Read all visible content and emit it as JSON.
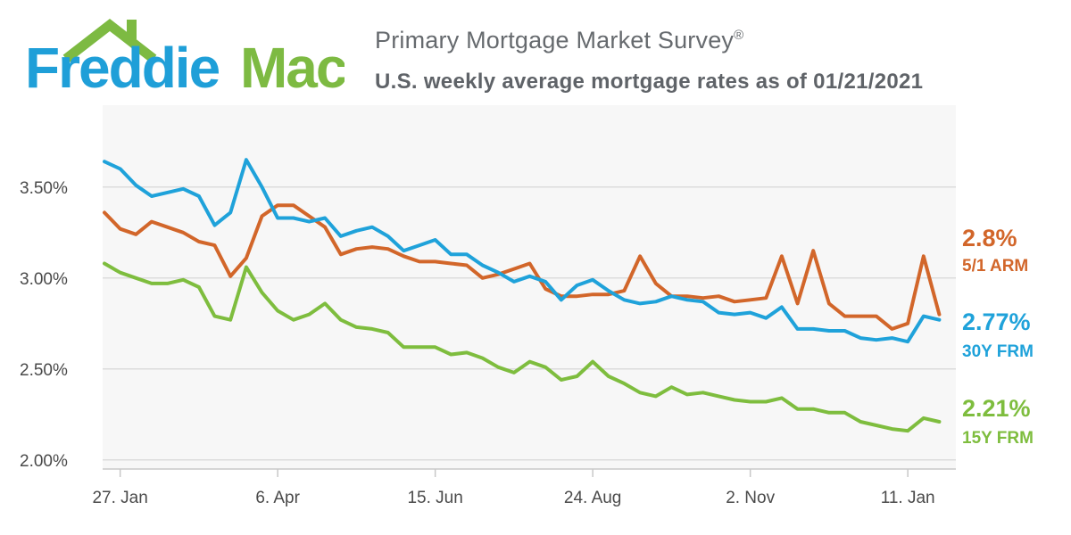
{
  "brand": {
    "name": "Freddie Mac",
    "name_left": "Freddie",
    "name_right": "Mac",
    "blue": "#1f9fd8",
    "green": "#7dba42"
  },
  "header": {
    "title": "Primary Mortgage Market Survey",
    "title_mark": "®",
    "subtitle": "U.S. weekly average mortgage rates as of 01/21/2021"
  },
  "chart_data": {
    "type": "line",
    "title": "Primary Mortgage Market Survey®",
    "subtitle": "U.S. weekly average mortgage rates as of 01/21/2021",
    "xlabel": "",
    "ylabel": "",
    "ylim": [
      1.95,
      3.95
    ],
    "grid": true,
    "y_ticks": [
      {
        "value": 2.0,
        "label": "2.00%"
      },
      {
        "value": 2.5,
        "label": "2.50%"
      },
      {
        "value": 3.0,
        "label": "3.00%"
      },
      {
        "value": 3.5,
        "label": "3.50%"
      }
    ],
    "x_ticks": [
      {
        "index": 1,
        "label": "27. Jan"
      },
      {
        "index": 11,
        "label": "6. Apr"
      },
      {
        "index": 21,
        "label": "15. Jun"
      },
      {
        "index": 31,
        "label": "24. Aug"
      },
      {
        "index": 41,
        "label": "2. Nov"
      },
      {
        "index": 51,
        "label": "11. Jan"
      }
    ],
    "series": [
      {
        "name": "5/1 ARM",
        "end_label": "2.8%",
        "color": "#d2662a",
        "values": [
          3.36,
          3.27,
          3.24,
          3.31,
          3.28,
          3.25,
          3.2,
          3.18,
          3.01,
          3.11,
          3.34,
          3.4,
          3.4,
          3.34,
          3.28,
          3.13,
          3.16,
          3.17,
          3.16,
          3.12,
          3.09,
          3.09,
          3.08,
          3.07,
          3.0,
          3.02,
          3.05,
          3.08,
          2.94,
          2.9,
          2.9,
          2.91,
          2.91,
          2.93,
          3.12,
          2.97,
          2.9,
          2.9,
          2.89,
          2.9,
          2.87,
          2.88,
          2.89,
          3.12,
          2.86,
          3.15,
          2.86,
          2.79,
          2.79,
          2.79,
          2.72,
          2.75,
          3.12,
          2.8
        ]
      },
      {
        "name": "30Y FRM",
        "end_label": "2.77%",
        "color": "#1fa2da",
        "values": [
          3.64,
          3.6,
          3.51,
          3.45,
          3.47,
          3.49,
          3.45,
          3.29,
          3.36,
          3.65,
          3.5,
          3.33,
          3.33,
          3.31,
          3.33,
          3.23,
          3.26,
          3.28,
          3.23,
          3.15,
          3.18,
          3.21,
          3.13,
          3.13,
          3.07,
          3.03,
          2.98,
          3.01,
          2.98,
          2.88,
          2.96,
          2.99,
          2.93,
          2.88,
          2.86,
          2.87,
          2.9,
          2.88,
          2.87,
          2.81,
          2.8,
          2.81,
          2.78,
          2.84,
          2.72,
          2.72,
          2.71,
          2.71,
          2.67,
          2.66,
          2.67,
          2.65,
          2.79,
          2.77
        ]
      },
      {
        "name": "15Y FRM",
        "end_label": "2.21%",
        "color": "#7ebd3e",
        "values": [
          3.08,
          3.03,
          3.0,
          2.97,
          2.97,
          2.99,
          2.95,
          2.79,
          2.77,
          3.06,
          2.92,
          2.82,
          2.77,
          2.8,
          2.86,
          2.77,
          2.73,
          2.72,
          2.7,
          2.62,
          2.62,
          2.62,
          2.58,
          2.59,
          2.56,
          2.51,
          2.48,
          2.54,
          2.51,
          2.44,
          2.46,
          2.54,
          2.46,
          2.42,
          2.37,
          2.35,
          2.4,
          2.36,
          2.37,
          2.35,
          2.33,
          2.32,
          2.32,
          2.34,
          2.28,
          2.28,
          2.26,
          2.26,
          2.21,
          2.19,
          2.17,
          2.16,
          2.23,
          2.21
        ]
      }
    ]
  }
}
